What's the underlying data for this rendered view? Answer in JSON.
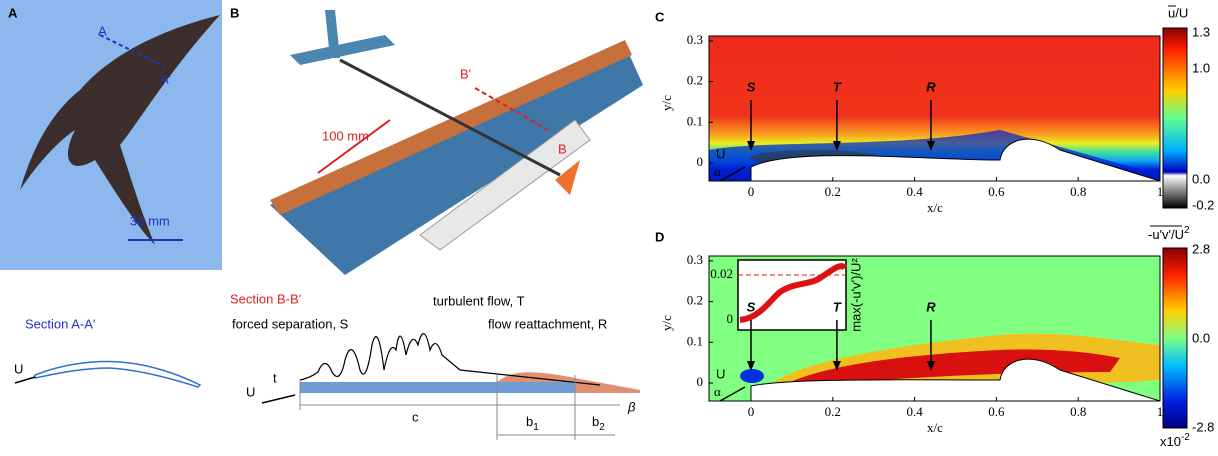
{
  "panels": {
    "A": {
      "label": "A",
      "section_start": "A",
      "section_end": "A'",
      "scale": "30 mm",
      "section_title": "Section A-A'",
      "flow": "U"
    },
    "B": {
      "label": "B",
      "section_start": "B'",
      "section_end": "B",
      "scale": "100 mm",
      "section_title": "Section B-B'",
      "separation": "forced separation, S",
      "turbulent": "turbulent flow, T",
      "reattachment": "flow reattachment, R",
      "flow": "U",
      "thickness": "t",
      "chord": "c",
      "b1": {
        "base": "b",
        "sub": "1"
      },
      "b2": {
        "base": "b",
        "sub": "2"
      },
      "angle": "β"
    },
    "C": {
      "label": "C",
      "xlabel": "x/c",
      "ylabel": "y/c",
      "xticks": [
        "0",
        "0.2",
        "0.4",
        "0.6",
        "0.8",
        "1"
      ],
      "yticks": [
        "0",
        "0.1",
        "0.2",
        "0.3"
      ],
      "markers": [
        "S",
        "T",
        "R"
      ],
      "flow": "U",
      "angle": "α",
      "colorbar": {
        "label": "u/U",
        "ticks": [
          "1.3",
          "1.0",
          "0.0",
          "-0.2"
        ]
      }
    },
    "D": {
      "label": "D",
      "xlabel": "x/c",
      "ylabel": "y/c",
      "xticks": [
        "0",
        "0.2",
        "0.4",
        "0.6",
        "0.8",
        "1"
      ],
      "yticks": [
        "0",
        "0.1",
        "0.2",
        "0.3"
      ],
      "markers": [
        "S",
        "T",
        "R"
      ],
      "flow": "U",
      "angle": "α",
      "colorbar": {
        "label": "-u'v'",
        "label_tail": "/U",
        "label_sup": "2",
        "ticks": [
          "2.8",
          "0.0",
          "-2.8"
        ],
        "multiplier": "x10",
        "multiplier_exp": "-2"
      },
      "inset": {
        "yticks": [
          "0.02",
          "0"
        ],
        "ylabel": "max(-u'v')/U²"
      }
    }
  }
}
